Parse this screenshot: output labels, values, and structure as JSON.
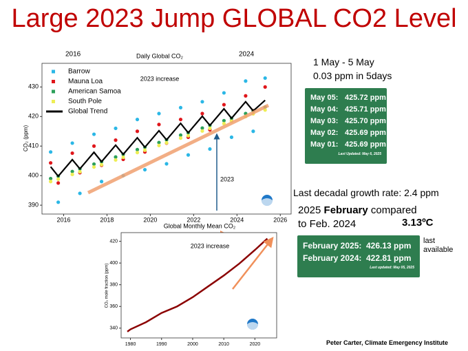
{
  "title": "Large 2023 Jump GLOBAL CO2 Level",
  "chart_data": [
    {
      "type": "scatter",
      "title": "Daily Global CO₂",
      "y_label": "CO₂ (ppm)",
      "annotations": [
        "2016",
        "2024",
        "2023 increase",
        "2023"
      ],
      "x": [
        2015.4,
        2015.75,
        2016.4,
        2016.75,
        2017.4,
        2017.75,
        2018.4,
        2018.75,
        2019.4,
        2019.75,
        2020.4,
        2020.75,
        2021.4,
        2021.75,
        2022.4,
        2022.75,
        2023.4,
        2023.75,
        2024.4,
        2024.75,
        2025.3
      ],
      "series": [
        {
          "name": "Barrow",
          "color": "#2bb7e6",
          "mark": "scatter",
          "values": [
            408,
            391,
            411,
            394,
            414,
            398,
            416,
            400,
            419,
            402,
            421,
            404,
            423,
            407,
            425,
            409,
            428,
            413,
            432,
            415,
            433
          ]
        },
        {
          "name": "Mauna Loa",
          "color": "#e0161b",
          "mark": "scatter",
          "values": [
            404.3,
            397.5,
            407.6,
            401.0,
            410.0,
            403.5,
            412.0,
            405.5,
            415.0,
            408.0,
            417.3,
            411.0,
            419.0,
            413.0,
            421.0,
            415.5,
            424.0,
            418.5,
            427.0,
            422.0,
            430.0
          ]
        },
        {
          "name": "American Samoa",
          "color": "#2ca05a",
          "mark": "scatter",
          "values": [
            399.0,
            399.8,
            401.4,
            402.3,
            403.9,
            404.7,
            406.3,
            407.2,
            408.8,
            409.6,
            411.2,
            412.1,
            413.7,
            414.5,
            416.1,
            417.0,
            418.6,
            419.4,
            421.0,
            421.9,
            423.2
          ]
        },
        {
          "name": "South Pole",
          "color": "#eeee55",
          "mark": "scatter",
          "values": [
            398.0,
            398.8,
            400.4,
            401.3,
            402.9,
            403.7,
            405.3,
            406.2,
            407.8,
            408.6,
            410.2,
            411.1,
            412.7,
            413.5,
            415.1,
            416.0,
            417.6,
            418.4,
            420.0,
            420.9,
            422.2
          ]
        },
        {
          "name": "Global Trend",
          "color": "#000000",
          "mark": "line",
          "values": [
            403.0,
            399.8,
            405.4,
            402.3,
            407.9,
            404.7,
            410.3,
            407.2,
            412.8,
            409.6,
            415.2,
            412.1,
            417.7,
            414.5,
            420.1,
            417.0,
            422.6,
            419.4,
            425.0,
            421.9,
            425.5
          ]
        }
      ],
      "xlim": [
        2015,
        2026.5
      ],
      "xticks": [
        2016,
        2018,
        2020,
        2022,
        2024,
        2026
      ],
      "ylim": [
        387,
        438
      ],
      "yticks": [
        390,
        400,
        410,
        420,
        430
      ],
      "legend": "upper left",
      "grid": false
    },
    {
      "type": "line",
      "title": "Global Monthly Mean CO₂",
      "y_label": "CO₂ mole fraction (ppm)",
      "annotations": [
        "2023 increase"
      ],
      "x": [
        1979,
        1980,
        1985,
        1990,
        1995,
        2000,
        2005,
        2010,
        2015,
        2020,
        2024
      ],
      "series": [
        {
          "color": "#8b0000",
          "mark": "line",
          "values": [
            336.8,
            338.9,
            345.5,
            354.0,
            360.0,
            368.5,
            378.5,
            388.5,
            399.5,
            412.0,
            422.5
          ]
        }
      ],
      "xlim": [
        1977,
        2027
      ],
      "xticks": [
        1980,
        1990,
        2000,
        2010,
        2020
      ],
      "ylim": [
        331,
        428
      ],
      "yticks": [
        340,
        360,
        380,
        400,
        420
      ],
      "grid": false
    }
  ],
  "period": {
    "range": "1 May - 5 May",
    "change": "0.03 ppm in 5days"
  },
  "may_table": {
    "rows": [
      [
        "May 05:",
        "425.72 ppm"
      ],
      [
        "May 04:",
        "425.71 ppm"
      ],
      [
        "May 03:",
        "425.70 ppm"
      ],
      [
        "May 02:",
        "425.69 ppm"
      ],
      [
        "May 01:",
        "425.69 ppm"
      ]
    ],
    "footer": "Last Updated: May 6, 2025"
  },
  "decadal": "Last decadal growth rate: 2.4 ppm",
  "compare": {
    "year": "2025",
    "month": "February",
    "rest": "compared",
    "line2": "to Feb. 2024"
  },
  "temperature": "3.13ºC",
  "feb_table": {
    "rows": [
      [
        "February 2025:",
        "426.13 ppm"
      ],
      [
        "February 2024:",
        "422.81 ppm"
      ]
    ],
    "footer": "Last updated: May 05, 2025"
  },
  "last_available": "last available",
  "credit": "Peter Carter, Climate Emergency Institute"
}
